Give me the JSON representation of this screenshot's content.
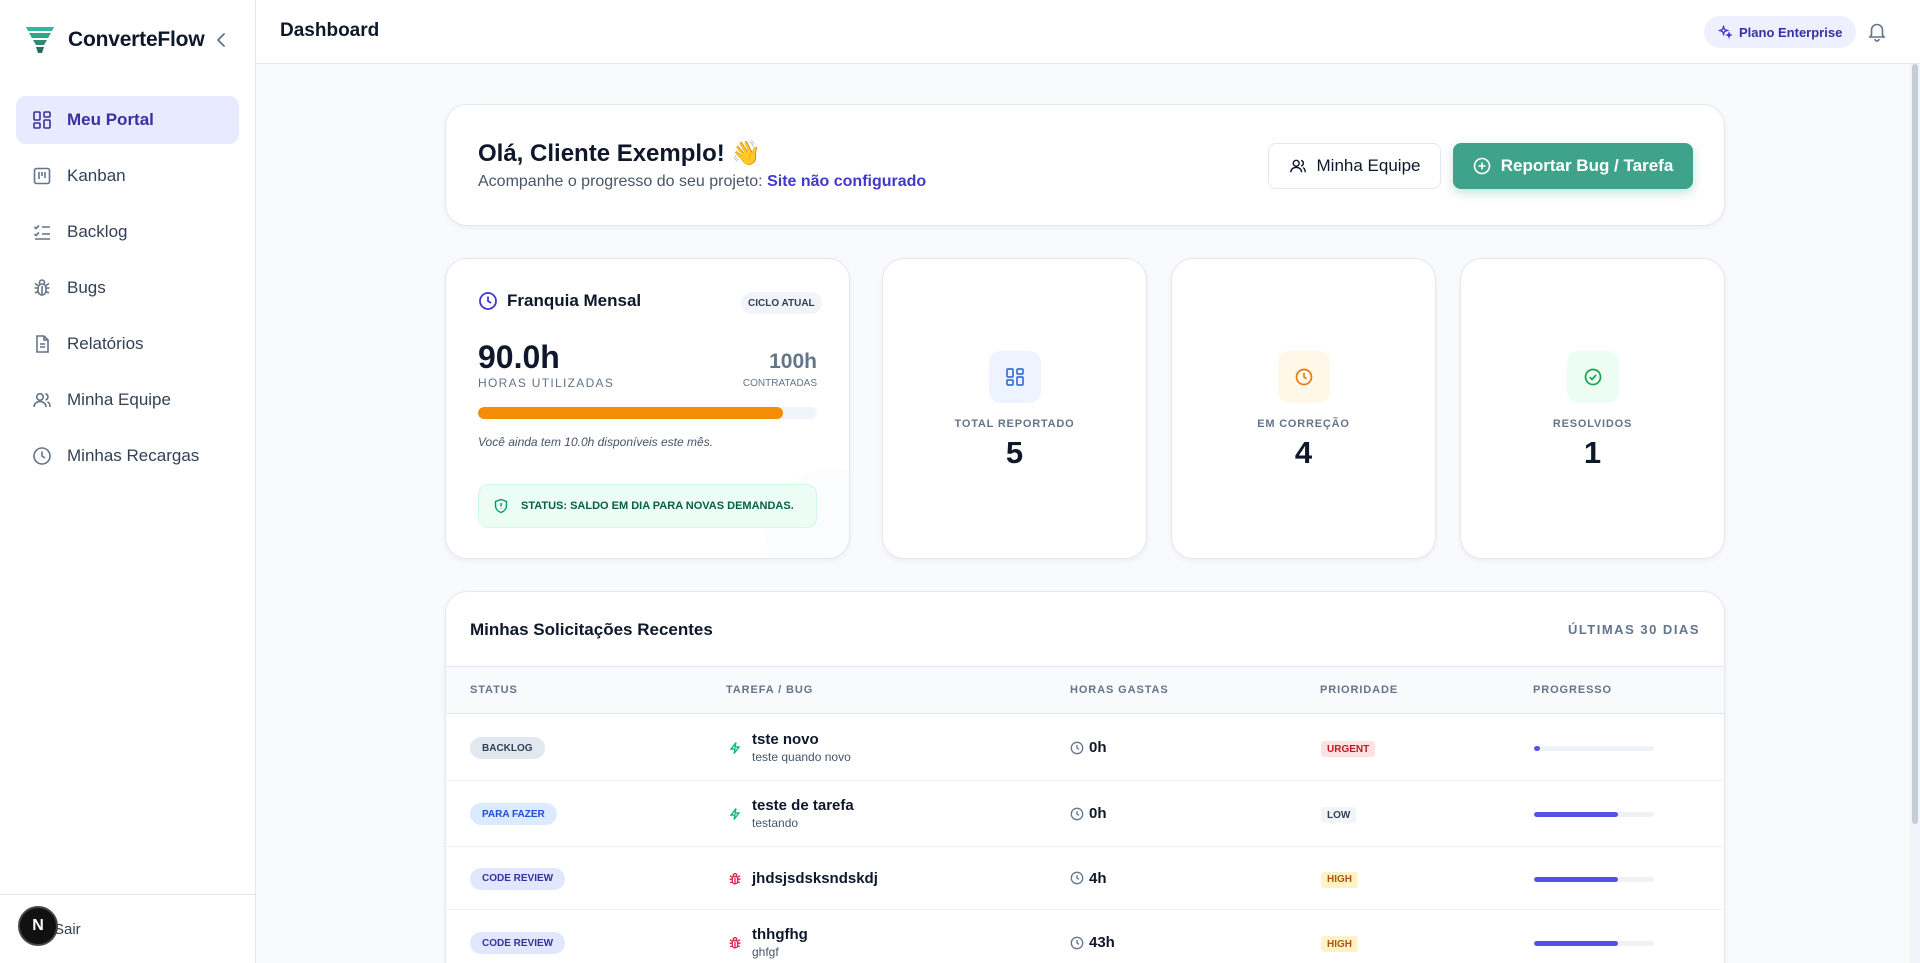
{
  "brand": {
    "name": "ConverteFlow"
  },
  "sidebar": {
    "items": [
      {
        "label": "Meu Portal",
        "icon": "dashboard-icon",
        "active": true
      },
      {
        "label": "Kanban",
        "icon": "kanban-icon"
      },
      {
        "label": "Backlog",
        "icon": "list-check-icon"
      },
      {
        "label": "Bugs",
        "icon": "bug-icon"
      },
      {
        "label": "Relatórios",
        "icon": "file-text-icon"
      },
      {
        "label": "Minha Equipe",
        "icon": "users-icon"
      },
      {
        "label": "Minhas Recargas",
        "icon": "clock-icon"
      }
    ],
    "logout_label": "Sair",
    "avatar_letter": "N"
  },
  "header": {
    "title": "Dashboard",
    "plan_badge": "Plano Enterprise"
  },
  "welcome": {
    "greeting": "Olá, Cliente Exemplo! 👋",
    "subtitle": "Acompanhe o progresso do seu projeto:",
    "site_link": "Site não configurado",
    "team_button": "Minha Equipe",
    "report_button": "Reportar Bug / Tarefa"
  },
  "franquia": {
    "title": "Franquia Mensal",
    "cycle_badge": "CICLO ATUAL",
    "used_value": "90.0h",
    "used_label": "HORAS UTILIZADAS",
    "contracted_value": "100h",
    "contracted_label": "CONTRATADAS",
    "usage_fraction": 0.9,
    "remaining_text": "Você ainda tem 10.0h disponíveis este mês.",
    "status_text": "STATUS: SALDO EM DIA PARA NOVAS DEMANDAS."
  },
  "stats": [
    {
      "label": "TOTAL REPORTADO",
      "value": "5",
      "color": "#3b6fd8",
      "bg": "#eef4ff"
    },
    {
      "label": "EM CORREÇÃO",
      "value": "4",
      "color": "#ea7a0b",
      "bg": "#fff7e8"
    },
    {
      "label": "RESOLVIDOS",
      "value": "1",
      "color": "#16a34a",
      "bg": "#ecfdf3"
    }
  ],
  "requests": {
    "title": "Minhas Solicitações Recentes",
    "range": "ÚLTIMAS 30 DIAS",
    "columns": [
      "STATUS",
      "TAREFA / BUG",
      "HORAS GASTAS",
      "PRIORIDADE",
      "PROGRESSO"
    ],
    "rows": [
      {
        "status": "BACKLOG",
        "type": "task",
        "title": "tste novo",
        "subtitle": "teste quando novo",
        "hours": "0h",
        "priority": "URGENT",
        "progress": 0.05
      },
      {
        "status": "PARA FAZER",
        "type": "task",
        "title": "teste de tarefa",
        "subtitle": "testando",
        "hours": "0h",
        "priority": "LOW",
        "progress": 0.7
      },
      {
        "status": "CODE REVIEW",
        "type": "bug",
        "title": "jhdsjsdsksndskdj",
        "subtitle": "",
        "hours": "4h",
        "priority": "HIGH",
        "progress": 0.7
      },
      {
        "status": "CODE REVIEW",
        "type": "bug",
        "title": "thhgfhg",
        "subtitle": "ghfgf",
        "hours": "43h",
        "priority": "HIGH",
        "progress": 0.7
      }
    ]
  },
  "colors": {
    "accent": "#3730a3",
    "primary_button": "#3fa38c",
    "usage_bar": "#f48c06",
    "progress_bar": "#5552e6"
  }
}
